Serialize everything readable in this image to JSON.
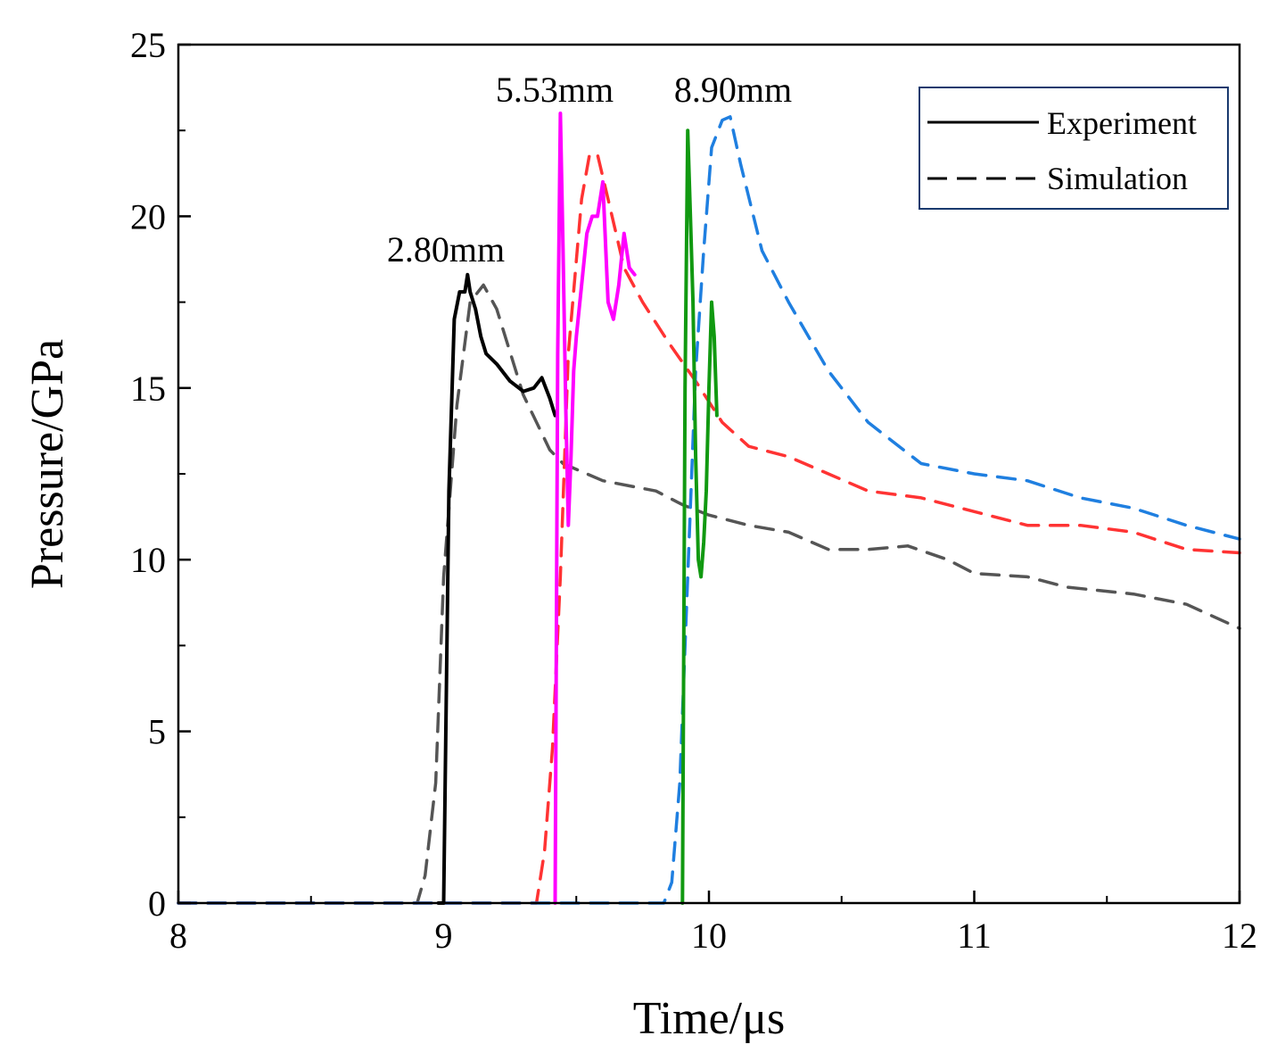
{
  "chart_data": {
    "type": "line",
    "title": "",
    "xlabel": "Time/μs",
    "ylabel": "Pressure/GPa",
    "xlim": [
      8,
      12
    ],
    "ylim": [
      0,
      25
    ],
    "xticks": [
      8,
      9,
      10,
      11,
      12
    ],
    "yticks": [
      0,
      5,
      10,
      15,
      20,
      25
    ],
    "grid": false,
    "legend": {
      "position": "top-right",
      "entries": [
        {
          "label": "Experiment",
          "style": "solid"
        },
        {
          "label": "Simulation",
          "style": "dashed"
        }
      ]
    },
    "annotations": [
      {
        "text": "2.80mm",
        "x": 9.08,
        "y": 18.8
      },
      {
        "text": "5.53mm",
        "x": 9.53,
        "y": 23.5
      },
      {
        "text": "8.90mm",
        "x": 10.1,
        "y": 23.5
      }
    ],
    "series": [
      {
        "name": "Simulation 2.80mm",
        "kind": "simulation",
        "color": "#555555",
        "x": [
          8.0,
          8.9,
          8.93,
          8.97,
          9.0,
          9.05,
          9.1,
          9.15,
          9.2,
          9.3,
          9.4,
          9.45,
          9.6,
          9.8,
          9.9,
          10.0,
          10.15,
          10.3,
          10.45,
          10.6,
          10.75,
          10.9,
          11.0,
          11.2,
          11.35,
          11.6,
          11.8,
          12.0
        ],
        "y": [
          0,
          0,
          0.8,
          3.5,
          9.5,
          14.5,
          17.5,
          18.0,
          17.3,
          14.8,
          13.2,
          12.8,
          12.3,
          12.0,
          11.6,
          11.3,
          11.0,
          10.8,
          10.3,
          10.3,
          10.4,
          10.0,
          9.6,
          9.5,
          9.2,
          9.0,
          8.7,
          8.0
        ]
      },
      {
        "name": "Simulation 5.53mm",
        "kind": "simulation",
        "color": "#ff3333",
        "x": [
          8.0,
          9.35,
          9.38,
          9.41,
          9.44,
          9.47,
          9.52,
          9.55,
          9.58,
          9.62,
          9.68,
          9.75,
          9.85,
          9.95,
          10.05,
          10.15,
          10.3,
          10.45,
          10.6,
          10.8,
          11.0,
          11.2,
          11.4,
          11.6,
          11.8,
          12.0
        ],
        "y": [
          0,
          0,
          1.5,
          4.5,
          9.5,
          16.0,
          20.5,
          21.8,
          21.8,
          20.5,
          18.5,
          17.5,
          16.3,
          15.2,
          14.0,
          13.3,
          13.0,
          12.5,
          12.0,
          11.8,
          11.4,
          11.0,
          11.0,
          10.8,
          10.3,
          10.2
        ]
      },
      {
        "name": "Simulation 8.90mm",
        "kind": "simulation",
        "color": "#1f7fe0",
        "x": [
          8.0,
          9.83,
          9.86,
          9.89,
          9.92,
          9.95,
          9.98,
          10.01,
          10.05,
          10.08,
          10.12,
          10.2,
          10.3,
          10.45,
          10.6,
          10.8,
          11.0,
          11.2,
          11.4,
          11.6,
          11.8,
          12.0
        ],
        "y": [
          0,
          0,
          0.6,
          3.5,
          9.5,
          15.5,
          19.0,
          22.0,
          22.8,
          22.9,
          21.5,
          19.0,
          17.5,
          15.5,
          14.0,
          12.8,
          12.5,
          12.3,
          11.8,
          11.5,
          11.0,
          10.6
        ]
      },
      {
        "name": "Experiment 2.80mm",
        "kind": "experiment",
        "color": "#000000",
        "x": [
          8.98,
          9.0,
          9.02,
          9.04,
          9.06,
          9.08,
          9.09,
          9.1,
          9.12,
          9.14,
          9.16,
          9.2,
          9.25,
          9.3,
          9.34,
          9.37,
          9.4,
          9.42
        ],
        "y": [
          0,
          0,
          12.0,
          17.0,
          17.8,
          17.8,
          18.3,
          17.8,
          17.3,
          16.5,
          16.0,
          15.7,
          15.2,
          14.9,
          15.0,
          15.3,
          14.7,
          14.2
        ]
      },
      {
        "name": "Experiment 5.53mm",
        "kind": "experiment",
        "color": "#ff00ff",
        "x": [
          9.42,
          9.43,
          9.44,
          9.45,
          9.46,
          9.47,
          9.48,
          9.49,
          9.5,
          9.52,
          9.54,
          9.56,
          9.58,
          9.6,
          9.62,
          9.64,
          9.66,
          9.68,
          9.7,
          9.72
        ],
        "y": [
          0,
          16.0,
          23.0,
          19.0,
          14.5,
          11.0,
          13.0,
          15.5,
          16.5,
          18.0,
          19.5,
          20.0,
          20.0,
          21.0,
          17.5,
          17.0,
          18.0,
          19.5,
          18.5,
          18.3
        ]
      },
      {
        "name": "Experiment 8.90mm",
        "kind": "experiment",
        "color": "#119911",
        "x": [
          9.9,
          9.91,
          9.92,
          9.93,
          9.94,
          9.95,
          9.96,
          9.97,
          9.98,
          9.99,
          10.0,
          10.01,
          10.02,
          10.03
        ],
        "y": [
          0,
          15.0,
          22.5,
          20.0,
          17.5,
          13.0,
          10.0,
          9.5,
          10.5,
          12.0,
          15.0,
          17.5,
          16.5,
          14.2
        ]
      }
    ]
  }
}
